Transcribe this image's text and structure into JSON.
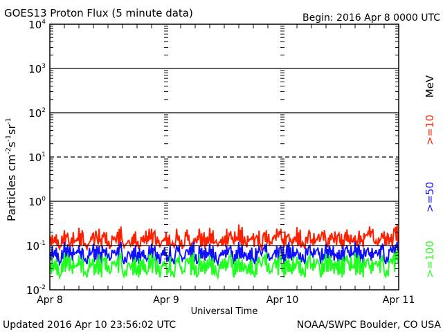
{
  "chart_data": {
    "type": "line",
    "title": "GOES13 Proton Flux (5 minute data)",
    "begin_label": "Begin: 2016 Apr 8 0000 UTC",
    "xlabel": "Universal Time",
    "ylabel_parts": [
      "Particles cm",
      "-2",
      "s",
      "-1",
      "sr",
      "-1"
    ],
    "x_ticks": [
      "Apr 8",
      "Apr 9",
      "Apr 10",
      "Apr 11"
    ],
    "x_range_hours": [
      0,
      72
    ],
    "y_scale": "log",
    "ylim": [
      0.01,
      10000
    ],
    "y_ticks": [
      {
        "base": "10",
        "exp": "4"
      },
      {
        "base": "10",
        "exp": "3"
      },
      {
        "base": "10",
        "exp": "2"
      },
      {
        "base": "10",
        "exp": "1"
      },
      {
        "base": "10",
        "exp": "0"
      },
      {
        "base": "10",
        "exp": "-1"
      },
      {
        "base": "10",
        "exp": "-2"
      }
    ],
    "unit_label": "MeV",
    "series": [
      {
        "name": ">=10",
        "color": "#ff2000",
        "values": [
          0.13,
          0.18,
          0.11,
          0.22,
          0.12,
          0.15,
          0.25,
          0.11,
          0.14,
          0.19,
          0.12,
          0.2,
          0.11,
          0.16,
          0.27,
          0.12,
          0.13,
          0.21,
          0.11,
          0.17,
          0.14,
          0.24,
          0.12,
          0.15,
          0.2,
          0.12,
          0.17,
          0.11,
          0.23,
          0.13,
          0.15,
          0.19,
          0.11,
          0.25,
          0.13,
          0.16,
          0.12,
          0.21,
          0.14,
          0.3,
          0.12,
          0.16,
          0.19,
          0.11,
          0.22,
          0.13,
          0.17,
          0.24,
          0.12,
          0.18,
          0.14,
          0.26,
          0.11,
          0.2,
          0.13,
          0.16,
          0.22,
          0.12,
          0.15,
          0.19,
          0.11,
          0.23,
          0.14,
          0.17,
          0.12,
          0.2,
          0.27,
          0.13,
          0.16,
          0.21,
          0.12,
          0.3
        ]
      },
      {
        "name": ">=50",
        "color": "#1010ff",
        "values": [
          0.06,
          0.09,
          0.05,
          0.12,
          0.06,
          0.08,
          0.1,
          0.05,
          0.07,
          0.11,
          0.05,
          0.09,
          0.06,
          0.08,
          0.12,
          0.05,
          0.07,
          0.1,
          0.05,
          0.08,
          0.06,
          0.11,
          0.05,
          0.09,
          0.07,
          0.05,
          0.1,
          0.06,
          0.08,
          0.12,
          0.05,
          0.09,
          0.06,
          0.11,
          0.05,
          0.08,
          0.07,
          0.1,
          0.05,
          0.12,
          0.06,
          0.09,
          0.05,
          0.08,
          0.11,
          0.06,
          0.07,
          0.1,
          0.05,
          0.12,
          0.06,
          0.08,
          0.05,
          0.1,
          0.07,
          0.09,
          0.05,
          0.11,
          0.06,
          0.08,
          0.05,
          0.1,
          0.07,
          0.12,
          0.05,
          0.09,
          0.06,
          0.08,
          0.11,
          0.05,
          0.09,
          0.12
        ]
      },
      {
        "name": ">=100",
        "color": "#20ff20",
        "values": [
          0.03,
          0.05,
          0.025,
          0.07,
          0.03,
          0.04,
          0.06,
          0.025,
          0.035,
          0.05,
          0.025,
          0.06,
          0.03,
          0.045,
          0.07,
          0.025,
          0.04,
          0.055,
          0.025,
          0.05,
          0.03,
          0.065,
          0.025,
          0.045,
          0.04,
          0.025,
          0.06,
          0.03,
          0.05,
          0.07,
          0.025,
          0.045,
          0.03,
          0.06,
          0.025,
          0.05,
          0.035,
          0.065,
          0.025,
          0.055,
          0.03,
          0.05,
          0.025,
          0.045,
          0.07,
          0.03,
          0.04,
          0.06,
          0.025,
          0.05,
          0.03,
          0.055,
          0.025,
          0.06,
          0.035,
          0.045,
          0.025,
          0.065,
          0.03,
          0.05,
          0.025,
          0.06,
          0.035,
          0.07,
          0.025,
          0.05,
          0.03,
          0.045,
          0.06,
          0.025,
          0.05,
          0.08
        ]
      }
    ]
  },
  "footer": {
    "updated": "Updated 2016 Apr 10 23:56:02 UTC",
    "credit": "NOAA/SWPC Boulder, CO USA"
  }
}
